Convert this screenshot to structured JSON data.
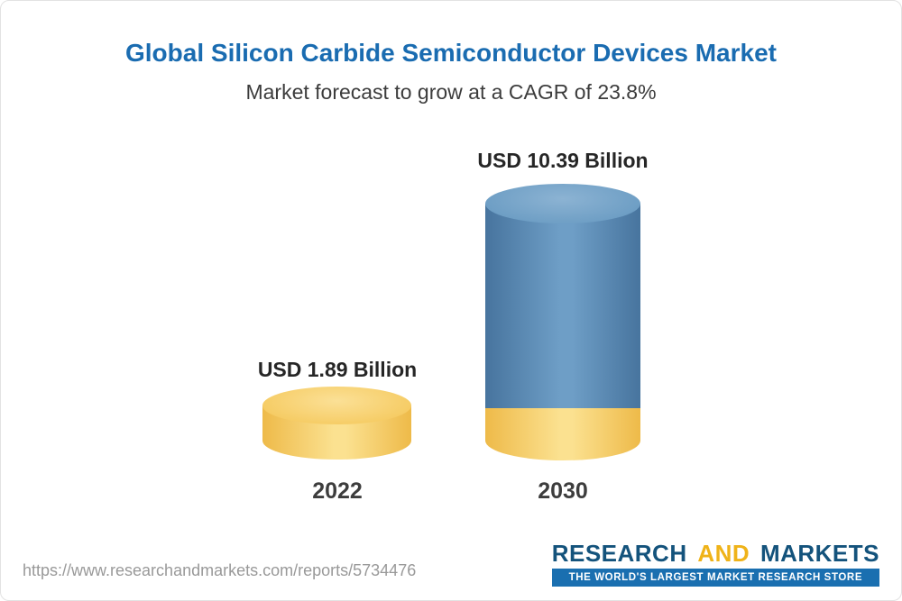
{
  "page": {
    "title": "Global Silicon Carbide Semiconductor Devices Market",
    "subtitle": "Market forecast to grow at a CAGR of 23.8%"
  },
  "chart_data": {
    "type": "bar",
    "title": "Global Silicon Carbide Semiconductor Devices Market",
    "subtitle": "Market forecast to grow at a CAGR of 23.8%",
    "categories": [
      "2022",
      "2030"
    ],
    "values": [
      1.89,
      10.39
    ],
    "unit": "USD Billion",
    "value_labels": [
      "USD 1.89 Billion",
      "USD 10.39 Billion"
    ],
    "cagr": "23.8%",
    "legend_position": "none",
    "grid": false,
    "colors": {
      "bar_2022": "#f5c963",
      "bar_2030": "#5b8fb9",
      "base_band_2030": "#f5c963",
      "title": "#1a6cb1"
    }
  },
  "footer": {
    "url": "https://www.researchandmarkets.com/reports/5734476",
    "logo": {
      "part1": "RESEARCH",
      "part2": "AND",
      "part3": "MARKETS",
      "tagline": "THE WORLD'S LARGEST MARKET RESEARCH STORE"
    }
  }
}
